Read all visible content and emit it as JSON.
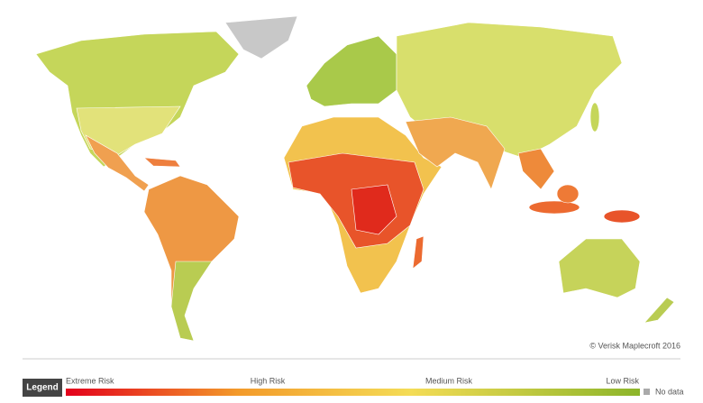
{
  "copyright": "© Verisk Maplecroft 2016",
  "legend": {
    "title": "Legend",
    "labels": [
      "Extreme Risk",
      "High Risk",
      "Medium Risk",
      "Low Risk"
    ],
    "no_data": "No data"
  }
}
